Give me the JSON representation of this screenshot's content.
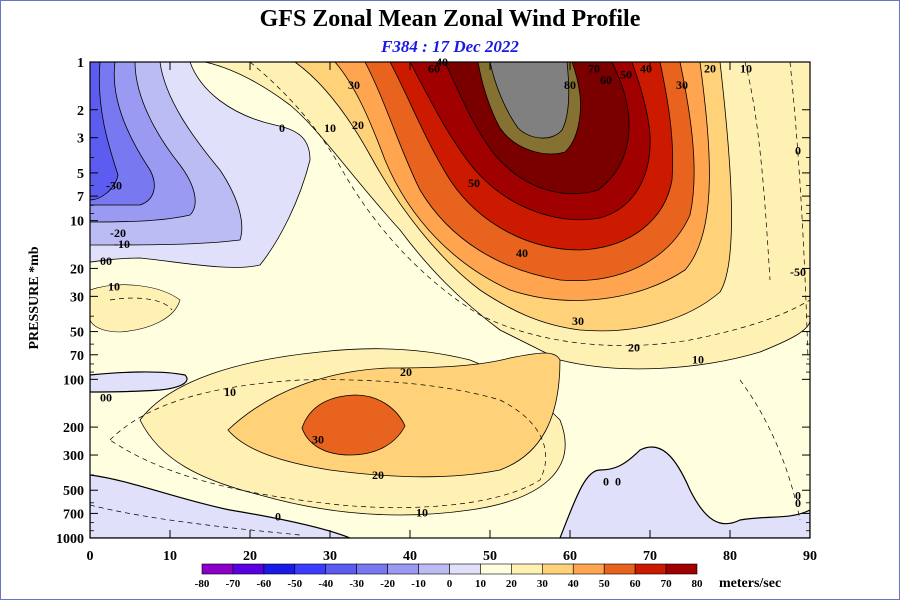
{
  "title": "GFS Zonal Mean Zonal Wind Profile",
  "subtitle": "F384 : 17 Dec 2022",
  "ylabel": "PRESSURE *mb",
  "colorbar_unit": "meters/sec",
  "chart_data": {
    "type": "contour",
    "x_ticks": [
      0,
      10,
      20,
      30,
      40,
      50,
      60,
      70,
      80,
      90
    ],
    "y_ticks": [
      "1",
      "2",
      "3",
      "5",
      "7",
      "10",
      "20",
      "30",
      "50",
      "70",
      "100",
      "200",
      "300",
      "500",
      "700",
      "1000"
    ],
    "y_scale": "log",
    "y_range": [
      1000,
      1
    ],
    "x_range": [
      0,
      90
    ],
    "colorbar": {
      "levels": [
        -80,
        -70,
        -60,
        -50,
        -40,
        -30,
        -20,
        -10,
        0,
        10,
        20,
        30,
        40,
        50,
        60,
        70,
        80
      ],
      "colors": [
        "#8b00c8",
        "#5a00e0",
        "#1a1ae6",
        "#3c3cff",
        "#5c5cf0",
        "#7878f0",
        "#9a9af2",
        "#bcbcf5",
        "#e0e0fa",
        "#ffffe0",
        "#fff0b3",
        "#ffd27a",
        "#ffa54f",
        "#e8641e",
        "#cc1a00",
        "#a00000",
        "#7a0000",
        "#857232"
      ]
    },
    "contour_labels": [
      {
        "text": "-30",
        "x": 3,
        "p": 6
      },
      {
        "text": "-20",
        "x": 3.5,
        "p": 12
      },
      {
        "text": "-10",
        "x": 4,
        "p": 14
      },
      {
        "text": "00",
        "x": 2,
        "p": 18
      },
      {
        "text": "10",
        "x": 3,
        "p": 26
      },
      {
        "text": "00",
        "x": 2,
        "p": 130
      },
      {
        "text": "0",
        "x": 24,
        "p": 2.6
      },
      {
        "text": "10",
        "x": 30,
        "p": 2.6
      },
      {
        "text": "20",
        "x": 33.5,
        "p": 2.5
      },
      {
        "text": "30",
        "x": 33,
        "p": 1.4
      },
      {
        "text": "40",
        "x": 44,
        "p": 1.0
      },
      {
        "text": "60",
        "x": 43,
        "p": 1.1
      },
      {
        "text": "50",
        "x": 48,
        "p": 5.8
      },
      {
        "text": "40",
        "x": 54,
        "p": 16
      },
      {
        "text": "30",
        "x": 61,
        "p": 43
      },
      {
        "text": "20",
        "x": 68,
        "p": 63
      },
      {
        "text": "10",
        "x": 76,
        "p": 75
      },
      {
        "text": "80",
        "x": 60,
        "p": 1.4
      },
      {
        "text": "70",
        "x": 63,
        "p": 1.1
      },
      {
        "text": "60",
        "x": 64.5,
        "p": 1.3
      },
      {
        "text": "50",
        "x": 67,
        "p": 1.2
      },
      {
        "text": "40",
        "x": 69.5,
        "p": 1.1
      },
      {
        "text": "30",
        "x": 74,
        "p": 1.4
      },
      {
        "text": "20",
        "x": 77.5,
        "p": 1.1
      },
      {
        "text": "10",
        "x": 82,
        "p": 1.1
      },
      {
        "text": "0",
        "x": 88.5,
        "p": 3.6
      },
      {
        "text": "-50",
        "x": 88.5,
        "p": 21
      },
      {
        "text": "20",
        "x": 39.5,
        "p": 90
      },
      {
        "text": "10",
        "x": 17.5,
        "p": 120
      },
      {
        "text": "30",
        "x": 28.5,
        "p": 240
      },
      {
        "text": "20",
        "x": 36,
        "p": 400
      },
      {
        "text": "10",
        "x": 41.5,
        "p": 690
      },
      {
        "text": "0",
        "x": 23.5,
        "p": 730
      },
      {
        "text": "0",
        "x": 64.5,
        "p": 440
      },
      {
        "text": "0",
        "x": 66,
        "p": 440
      },
      {
        "text": "0",
        "x": 88.5,
        "p": 540
      },
      {
        "text": "0",
        "x": 88.5,
        "p": 600
      }
    ]
  }
}
